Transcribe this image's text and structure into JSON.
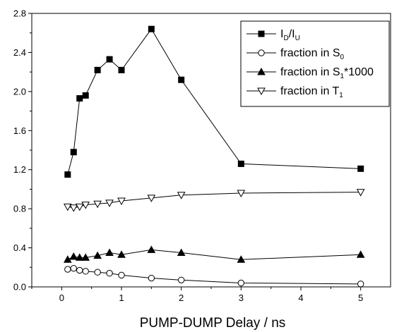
{
  "chart_data": {
    "type": "line",
    "title": "",
    "xlabel": "PUMP-DUMP Delay / ns",
    "ylabel": "",
    "xlim": [
      -0.5,
      5.5
    ],
    "ylim": [
      0.0,
      2.8
    ],
    "xticks": [
      0,
      1,
      2,
      3,
      4,
      5
    ],
    "xtick_labels": [
      "0",
      "1",
      "2",
      "3",
      "4",
      "5"
    ],
    "yticks": [
      0.0,
      0.4,
      0.8,
      1.2,
      1.6,
      2.0,
      2.4,
      2.8
    ],
    "ytick_labels": [
      "0.0",
      "0.4",
      "0.8",
      "1.2",
      "1.6",
      "2.0",
      "2.4",
      "2.8"
    ],
    "grid": false,
    "legend_position": "top-right",
    "series": [
      {
        "name": "I_D/I_U",
        "label_parts": [
          {
            "text": "I",
            "sub": false
          },
          {
            "text": "D",
            "sub": true
          },
          {
            "text": "/I",
            "sub": false
          },
          {
            "text": "U",
            "sub": true
          }
        ],
        "marker": "square-filled",
        "color": "#000000",
        "x": [
          0.1,
          0.2,
          0.3,
          0.4,
          0.6,
          0.8,
          1.0,
          1.5,
          2.0,
          3.0,
          5.0
        ],
        "y": [
          1.15,
          1.38,
          1.93,
          1.96,
          2.22,
          2.33,
          2.22,
          2.64,
          2.12,
          1.26,
          1.21
        ]
      },
      {
        "name": "fraction in S_0",
        "label_parts": [
          {
            "text": "fraction in S",
            "sub": false
          },
          {
            "text": "0",
            "sub": true
          }
        ],
        "marker": "circle-open",
        "color": "#000000",
        "x": [
          0.1,
          0.2,
          0.3,
          0.4,
          0.6,
          0.8,
          1.0,
          1.5,
          2.0,
          3.0,
          5.0
        ],
        "y": [
          0.18,
          0.19,
          0.17,
          0.16,
          0.15,
          0.14,
          0.12,
          0.09,
          0.07,
          0.04,
          0.03
        ]
      },
      {
        "name": "fraction in S_1*1000",
        "label_parts": [
          {
            "text": "fraction in S",
            "sub": false
          },
          {
            "text": "1",
            "sub": true
          },
          {
            "text": "*1000",
            "sub": false
          }
        ],
        "marker": "triangle-up-filled",
        "color": "#000000",
        "x": [
          0.1,
          0.2,
          0.3,
          0.4,
          0.6,
          0.8,
          1.0,
          1.5,
          2.0,
          3.0,
          5.0
        ],
        "y": [
          0.28,
          0.31,
          0.3,
          0.3,
          0.32,
          0.35,
          0.33,
          0.38,
          0.35,
          0.28,
          0.33
        ]
      },
      {
        "name": "fraction in T_1",
        "label_parts": [
          {
            "text": "fraction in T",
            "sub": false
          },
          {
            "text": "1",
            "sub": true
          }
        ],
        "marker": "triangle-down-open",
        "color": "#000000",
        "x": [
          0.1,
          0.2,
          0.3,
          0.4,
          0.6,
          0.8,
          1.0,
          1.5,
          2.0,
          3.0,
          5.0
        ],
        "y": [
          0.82,
          0.81,
          0.82,
          0.84,
          0.85,
          0.86,
          0.88,
          0.91,
          0.94,
          0.96,
          0.97
        ]
      }
    ]
  }
}
